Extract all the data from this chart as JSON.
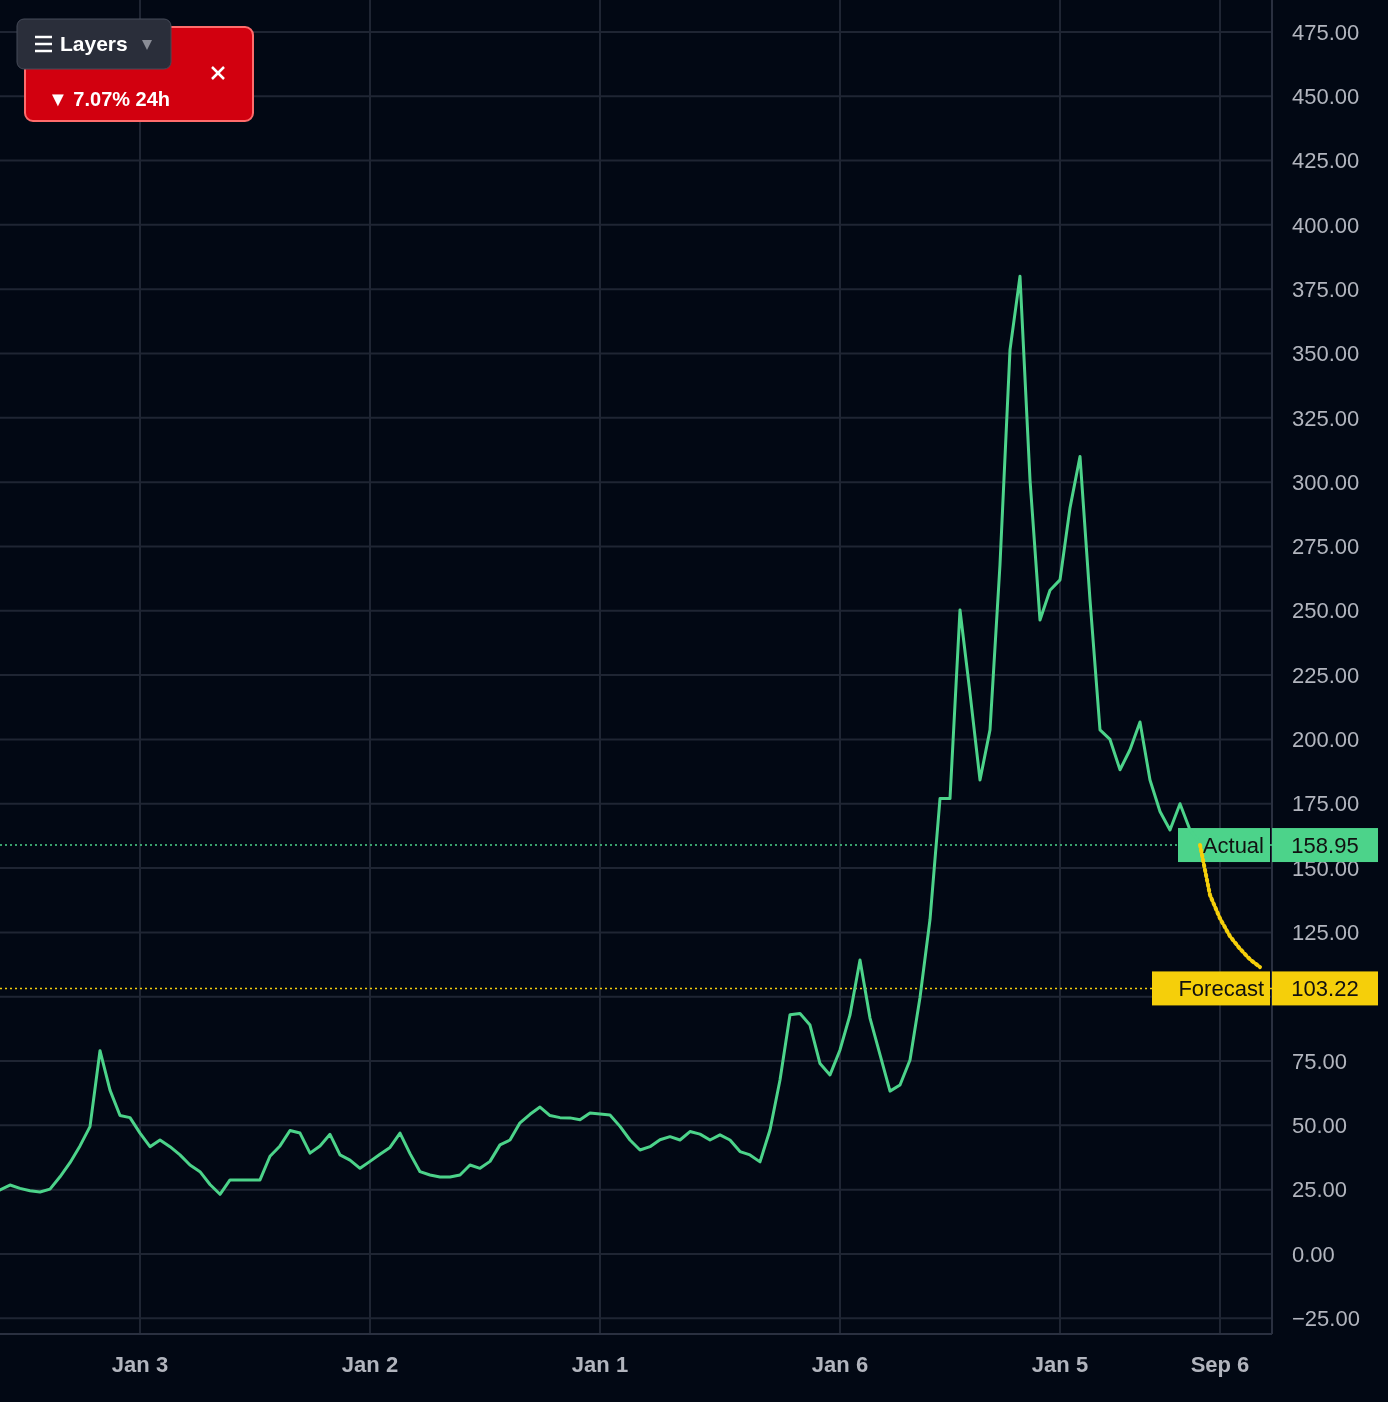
{
  "chart_data": {
    "type": "line",
    "ylim": [
      -31.1,
      487.4
    ],
    "categories": [
      null,
      null,
      null,
      null,
      null,
      null,
      null,
      null,
      null,
      null,
      null,
      null,
      null,
      null,
      "Jan 3",
      null,
      null,
      null,
      null,
      null,
      null,
      null,
      null,
      null,
      null,
      null,
      null,
      null,
      null,
      null,
      null,
      null,
      null,
      null,
      null,
      null,
      null,
      "Jan 2",
      null,
      null,
      null,
      null,
      null,
      null,
      null,
      null,
      null,
      null,
      null,
      null,
      null,
      null,
      null,
      null,
      null,
      null,
      null,
      null,
      null,
      null,
      "Jan 1",
      null,
      null,
      null,
      null,
      null,
      null,
      null,
      null,
      null,
      null,
      null,
      null,
      null,
      null,
      null,
      null,
      null,
      null,
      null,
      null,
      null,
      null,
      null,
      "Jan 6",
      null,
      null,
      null,
      null,
      null,
      null,
      null,
      null,
      null,
      null,
      null,
      null,
      null,
      null,
      null,
      null,
      null,
      null,
      null,
      null,
      null,
      "Jan 5",
      null,
      null,
      null,
      null,
      null,
      null,
      null,
      null,
      null,
      null,
      null,
      null,
      null,
      null,
      null,
      "Sep 6",
      null,
      null,
      null,
      null
    ],
    "yticks": [
      {
        "value": -25,
        "label": "−25.00"
      },
      {
        "value": 0,
        "label": "0.00"
      },
      {
        "value": 25,
        "label": "25.00"
      },
      {
        "value": 50,
        "label": "50.00"
      },
      {
        "value": 75,
        "label": "75.00"
      },
      {
        "value": 100,
        "label": null
      },
      {
        "value": 125,
        "label": "125.00"
      },
      {
        "value": 150,
        "label": "150.00"
      },
      {
        "value": 175,
        "label": "175.00"
      },
      {
        "value": 200,
        "label": "200.00"
      },
      {
        "value": 225,
        "label": "225.00"
      },
      {
        "value": 250,
        "label": "250.00"
      },
      {
        "value": 275,
        "label": "275.00"
      },
      {
        "value": 300,
        "label": "300.00"
      },
      {
        "value": 325,
        "label": "325.00"
      },
      {
        "value": 350,
        "label": "350.00"
      },
      {
        "value": 375,
        "label": "375.00"
      },
      {
        "value": 400,
        "label": "400.00"
      },
      {
        "value": 425,
        "label": "425.00"
      },
      {
        "value": 450,
        "label": "450.00"
      },
      {
        "value": 475,
        "label": "475.00"
      }
    ],
    "grid": true,
    "series": [
      {
        "color": "#4cd38a",
        "line_style": "solid",
        "values": [
          24.9,
          26.8,
          25.5,
          24.6,
          24.1,
          25.2,
          30,
          35.5,
          42,
          49.5,
          79,
          63.7,
          53.8,
          53,
          47,
          41.7,
          44.3,
          41.7,
          38.5,
          34.6,
          32,
          27,
          23.2,
          28.8,
          28.8,
          28.8,
          28.8,
          38,
          42,
          48,
          47,
          39.2,
          42,
          46.5,
          38.5,
          36.5,
          33.3,
          36,
          38.8,
          41.4,
          47,
          39,
          32,
          30.7,
          29.9,
          29.9,
          30.7,
          34.6,
          33.3,
          36,
          42.4,
          44.3,
          51,
          54.3,
          57.1,
          53.8,
          53,
          52.9,
          52.2,
          54.8,
          54.4,
          54,
          49.6,
          44.3,
          40.4,
          41.7,
          44.4,
          45.6,
          44.3,
          47.6,
          46.6,
          44.3,
          46.3,
          44.3,
          39.8,
          38.5,
          35.8,
          48.2,
          67.6,
          93,
          93.5,
          89,
          74,
          69.6,
          79.3,
          92.9,
          114.3,
          91.7,
          77.5,
          63.3,
          65.7,
          75.4,
          99.7,
          130,
          177,
          177,
          250.3,
          218,
          184.2,
          203.7,
          268,
          351.4,
          380,
          300.9,
          246.4,
          258,
          262,
          290,
          310,
          254.2,
          203.7,
          200,
          188.2,
          196,
          206.8,
          184.2,
          172,
          164.8,
          175,
          164.8,
          159.8,
          null,
          null,
          null,
          null,
          null,
          null
        ]
      },
      {
        "color": "#f5cf0a",
        "line_style": "dotted",
        "values": [
          null,
          null,
          null,
          null,
          null,
          null,
          null,
          null,
          null,
          null,
          null,
          null,
          null,
          null,
          null,
          null,
          null,
          null,
          null,
          null,
          null,
          null,
          null,
          null,
          null,
          null,
          null,
          null,
          null,
          null,
          null,
          null,
          null,
          null,
          null,
          null,
          null,
          null,
          null,
          null,
          null,
          null,
          null,
          null,
          null,
          null,
          null,
          null,
          null,
          null,
          null,
          null,
          null,
          null,
          null,
          null,
          null,
          null,
          null,
          null,
          null,
          null,
          null,
          null,
          null,
          null,
          null,
          null,
          null,
          null,
          null,
          null,
          null,
          null,
          null,
          null,
          null,
          null,
          null,
          null,
          null,
          null,
          null,
          null,
          null,
          null,
          null,
          null,
          null,
          null,
          null,
          null,
          null,
          null,
          null,
          null,
          null,
          null,
          null,
          null,
          null,
          null,
          null,
          null,
          null,
          null,
          null,
          null,
          null,
          null,
          null,
          null,
          null,
          null,
          null,
          null,
          null,
          null,
          null,
          null,
          159.0,
          139.5,
          130.4,
          123.5,
          118.6,
          114.5,
          111.5
        ]
      }
    ],
    "ref_lines": [
      {
        "axis": "y",
        "value": 158.95,
        "label": "Actual",
        "color": "#4cd38a",
        "line_style": "dotted"
      },
      {
        "axis": "y",
        "value": 103.22,
        "label": "Forecast",
        "color": "#f5cf0a",
        "line_style": "dotted"
      }
    ],
    "annotations": [
      "Layers",
      "▼ 7.07% 24h",
      "158.95",
      "103.22"
    ]
  }
}
